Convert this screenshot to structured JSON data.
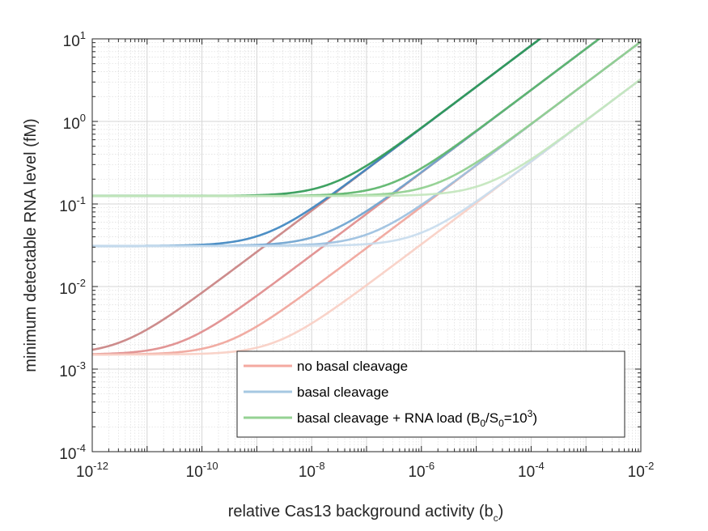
{
  "chart_data": {
    "type": "line",
    "xlabel": "relative Cas13 background activity (b",
    "xlabel_sub": "c",
    "xlabel_end": ")",
    "ylabel": "minimum detectable RNA level (fM)",
    "xscale": "log",
    "yscale": "log",
    "xlim": [
      1e-12,
      0.01
    ],
    "ylim": [
      0.0001,
      10
    ],
    "grid": true,
    "minor_grid": true,
    "legend_placement": "bottom-right",
    "x_ticks": [
      {
        "base": "10",
        "exp": "-12"
      },
      {
        "base": "10",
        "exp": "-10"
      },
      {
        "base": "10",
        "exp": "-8"
      },
      {
        "base": "10",
        "exp": "-6"
      },
      {
        "base": "10",
        "exp": "-4"
      },
      {
        "base": "10",
        "exp": "-2"
      }
    ],
    "y_ticks": [
      {
        "base": "10",
        "exp": "-4"
      },
      {
        "base": "10",
        "exp": "-3"
      },
      {
        "base": "10",
        "exp": "-2"
      },
      {
        "base": "10",
        "exp": "-1"
      },
      {
        "base": "10",
        "exp": "0"
      },
      {
        "base": "10",
        "exp": "1"
      }
    ],
    "legend": [
      {
        "text": "no basal cleavage",
        "color": "#f4a9a0"
      },
      {
        "text": "basal cleavage",
        "color": "#a6c8e2"
      },
      {
        "text_main": "basal cleavage + RNA load (B",
        "sub1": "0",
        "mid": "/S",
        "sub2": "0",
        "eq": "=10",
        "sup": "3",
        "end": ")",
        "color": "#95d293"
      }
    ],
    "series": [
      {
        "group": "no basal cleavage",
        "color": "#c98282",
        "floor": 0.0015,
        "slope_x": 1e-12,
        "slope_y": 0.00083
      },
      {
        "group": "no basal cleavage",
        "color": "#e08c8c",
        "floor": 0.0015,
        "slope_x": 1e-12,
        "slope_y": 0.00024
      },
      {
        "group": "no basal cleavage",
        "color": "#f0a59b",
        "floor": 0.0015,
        "slope_x": 1e-12,
        "slope_y": 9.25e-05
      },
      {
        "group": "no basal cleavage",
        "color": "#f8cfc4",
        "floor": 0.0015,
        "slope_x": 1e-12,
        "slope_y": 3.25e-05
      },
      {
        "group": "basal cleavage",
        "color": "#3e86c0",
        "floor": 0.031,
        "slope_x": 1e-12,
        "slope_y": 0.00083
      },
      {
        "group": "basal cleavage",
        "color": "#6ea3cf",
        "floor": 0.031,
        "slope_x": 1e-12,
        "slope_y": 0.00024
      },
      {
        "group": "basal cleavage",
        "color": "#9cc0df",
        "floor": 0.031,
        "slope_x": 1e-12,
        "slope_y": 9.25e-05
      },
      {
        "group": "basal cleavage",
        "color": "#c8dcee",
        "floor": 0.031,
        "slope_x": 1e-12,
        "slope_y": 3.25e-05
      },
      {
        "group": "basal cleavage + RNA load",
        "color": "#2f9a55",
        "floor": 0.125,
        "slope_x": 1e-12,
        "slope_y": 0.00083
      },
      {
        "group": "basal cleavage + RNA load",
        "color": "#5bb56a",
        "floor": 0.125,
        "slope_x": 1e-12,
        "slope_y": 0.00024
      },
      {
        "group": "basal cleavage + RNA load",
        "color": "#8fcf8e",
        "floor": 0.125,
        "slope_x": 1e-12,
        "slope_y": 9.25e-05
      },
      {
        "group": "basal cleavage + RNA load",
        "color": "#c3e6bd",
        "floor": 0.125,
        "slope_x": 1e-12,
        "slope_y": 3.25e-05
      }
    ]
  }
}
